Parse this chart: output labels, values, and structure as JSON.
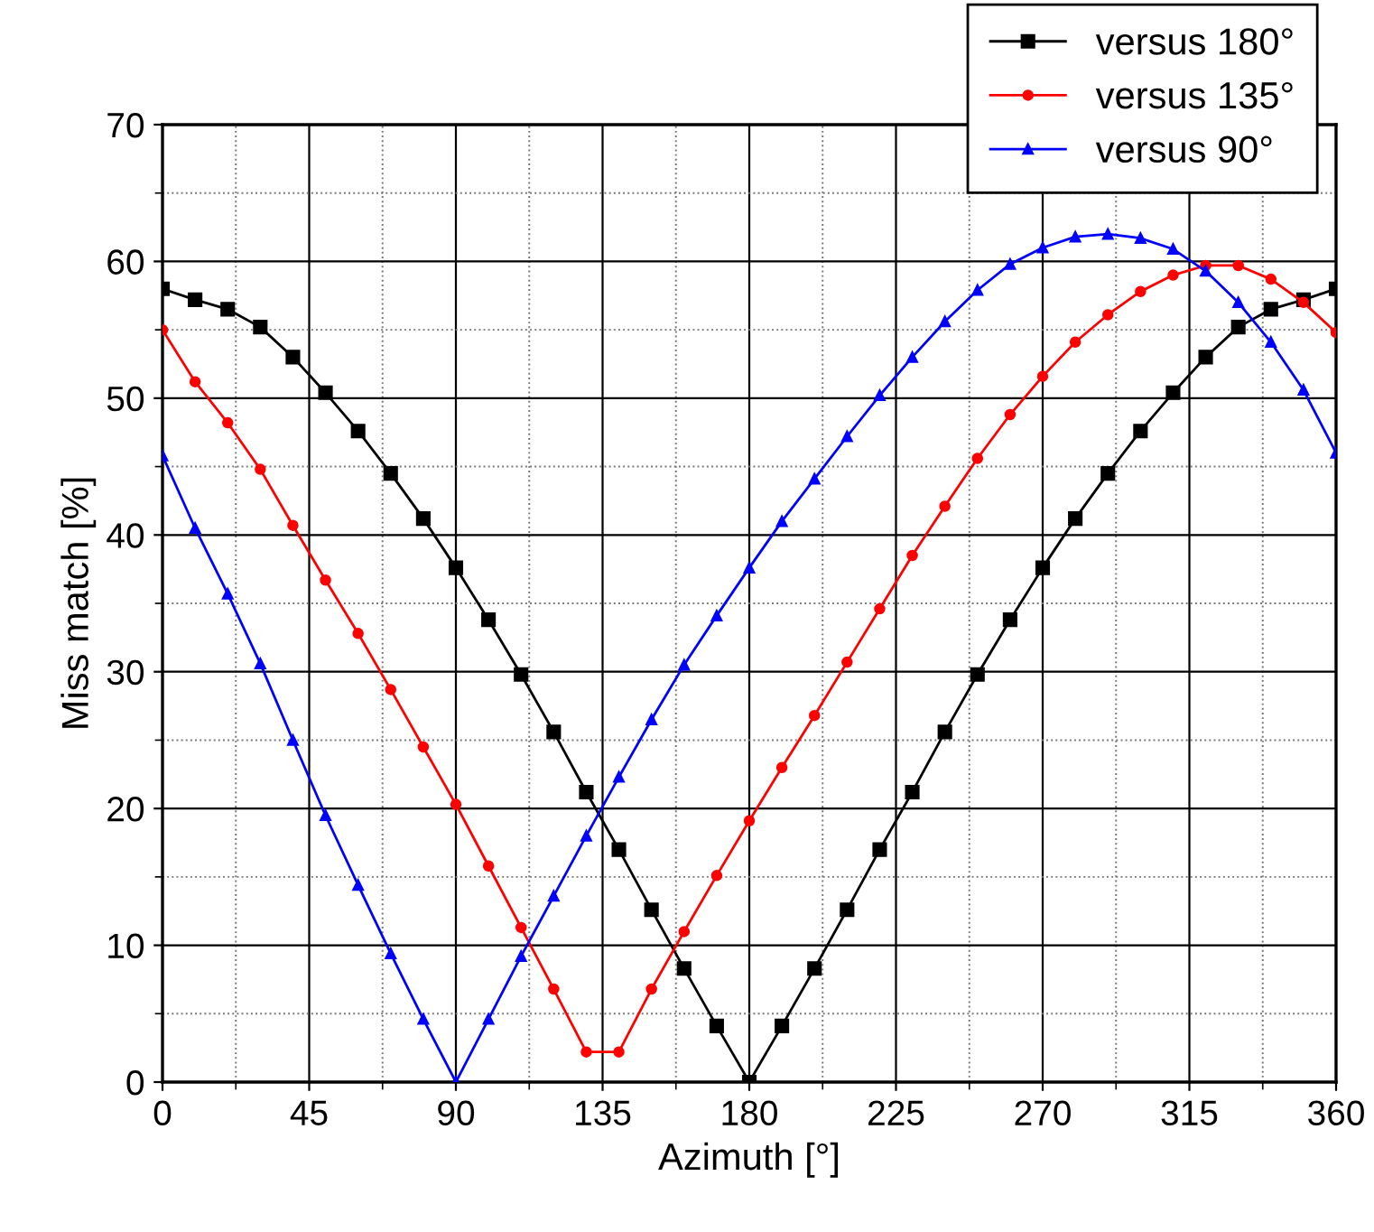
{
  "chart_data": {
    "type": "line",
    "xlabel": "Azimuth [°]",
    "ylabel": "Miss match [%]",
    "x": [
      0,
      10,
      20,
      30,
      40,
      50,
      60,
      70,
      80,
      90,
      100,
      110,
      120,
      130,
      140,
      150,
      160,
      170,
      180,
      190,
      200,
      210,
      220,
      230,
      240,
      250,
      260,
      270,
      280,
      290,
      300,
      310,
      320,
      330,
      340,
      350,
      360
    ],
    "series": [
      {
        "name": "versus 180°",
        "color": "#000000",
        "marker": "square",
        "values": [
          58,
          57.2,
          56.5,
          55.2,
          53,
          50.4,
          47.6,
          44.5,
          41.2,
          37.6,
          33.8,
          29.8,
          25.6,
          21.2,
          17,
          12.6,
          8.3,
          4.1,
          0,
          4.1,
          8.3,
          12.6,
          17,
          21.2,
          25.6,
          29.8,
          33.8,
          37.6,
          41.2,
          44.5,
          47.6,
          50.4,
          53,
          55.2,
          56.5,
          57.2,
          58
        ]
      },
      {
        "name": "versus 135°",
        "color": "#ff0000",
        "marker": "circle",
        "values": [
          55,
          51.2,
          48.2,
          44.8,
          40.7,
          36.7,
          32.8,
          28.7,
          24.5,
          20.3,
          15.8,
          11.3,
          6.8,
          2.2,
          2.2,
          6.8,
          11,
          15.1,
          19.1,
          23,
          26.8,
          30.7,
          34.6,
          38.5,
          42.1,
          45.6,
          48.8,
          51.6,
          54.1,
          56.1,
          57.8,
          59,
          59.7,
          59.7,
          58.7,
          57,
          54.8
        ]
      },
      {
        "name": "versus 90°",
        "color": "#0000ff",
        "marker": "triangle",
        "values": [
          45.8,
          40.5,
          35.7,
          30.6,
          25,
          19.5,
          14.4,
          9.4,
          4.6,
          0,
          4.6,
          9.2,
          13.6,
          18,
          22.3,
          26.5,
          30.5,
          34.1,
          37.6,
          41,
          44.1,
          47.2,
          50.2,
          53,
          55.6,
          57.9,
          59.8,
          61,
          61.8,
          62,
          61.7,
          60.9,
          59.3,
          57,
          54.1,
          50.6,
          46
        ]
      }
    ],
    "xlim": [
      0,
      360
    ],
    "xticks": [
      0,
      45,
      90,
      135,
      180,
      225,
      270,
      315,
      360
    ],
    "ylim": [
      0,
      70
    ],
    "yticks": [
      0,
      10,
      20,
      30,
      40,
      50,
      60,
      70
    ],
    "grid": true,
    "legend": "top right",
    "line_style": "solid"
  }
}
